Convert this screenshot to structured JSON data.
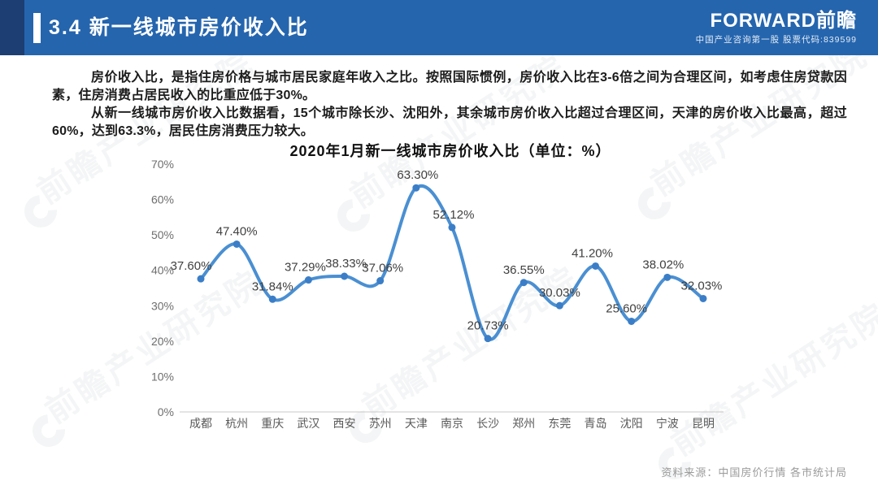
{
  "header": {
    "title": "3.4 新一线城市房价收入比",
    "logo_brand": "FORWARD前瞻",
    "logo_tagline": "中国产业咨询第一股 股票代码:839599"
  },
  "body": {
    "paragraph1": "房价收入比，是指住房价格与城市居民家庭年收入之比。按照国际惯例，房价收入比在3-6倍之间为合理区间，如考虑住房贷款因素，住房消费占居民收入的比重应低于30%。",
    "paragraph2": "从新一线城市房价收入比数据看，15个城市除长沙、沈阳外，其余城市房价收入比超过合理区间，天津的房价收入比最高，超过60%，达到63.3%，居民住房消费压力较大。"
  },
  "chart_data": {
    "type": "line",
    "title": "2020年1月新一线城市房价收入比（单位：%）",
    "categories": [
      "成都",
      "杭州",
      "重庆",
      "武汉",
      "西安",
      "苏州",
      "天津",
      "南京",
      "长沙",
      "郑州",
      "东莞",
      "青岛",
      "沈阳",
      "宁波",
      "昆明"
    ],
    "values": [
      37.6,
      47.4,
      31.84,
      37.29,
      38.33,
      37.06,
      63.3,
      52.12,
      20.73,
      36.55,
      30.03,
      41.2,
      25.6,
      38.02,
      32.03
    ],
    "point_labels": [
      "37.60%",
      "47.40%",
      "31.84%",
      "37.29%",
      "38.33%",
      "37.06%",
      "63.30%",
      "52.12%",
      "20.73%",
      "36.55%",
      "30.03%",
      "41.20%",
      "25.60%",
      "38.02%",
      "32.03%"
    ],
    "xlabel": "",
    "ylabel": "",
    "ylim": [
      0,
      70
    ],
    "ytick_step": 10,
    "ytick_labels": [
      "0%",
      "10%",
      "20%",
      "30%",
      "40%",
      "50%",
      "60%",
      "70%"
    ],
    "grid": false,
    "legend": "none",
    "smooth": true,
    "line_color": "#4a8fd2",
    "marker_color": "#3b7ec7",
    "label_color": "#404040",
    "axis_color": "#c8c8c8",
    "tick_text_color": "#6e6e6e",
    "category_text_color": "#595959"
  },
  "footer": {
    "source": "资料来源：中国房价行情 各市统计局"
  },
  "watermark": {
    "text": "前瞻产业研究院"
  },
  "colors": {
    "header_bg": "#2565ae",
    "header_accent": "#1d3e72",
    "accent_bar": "#ffffff"
  }
}
